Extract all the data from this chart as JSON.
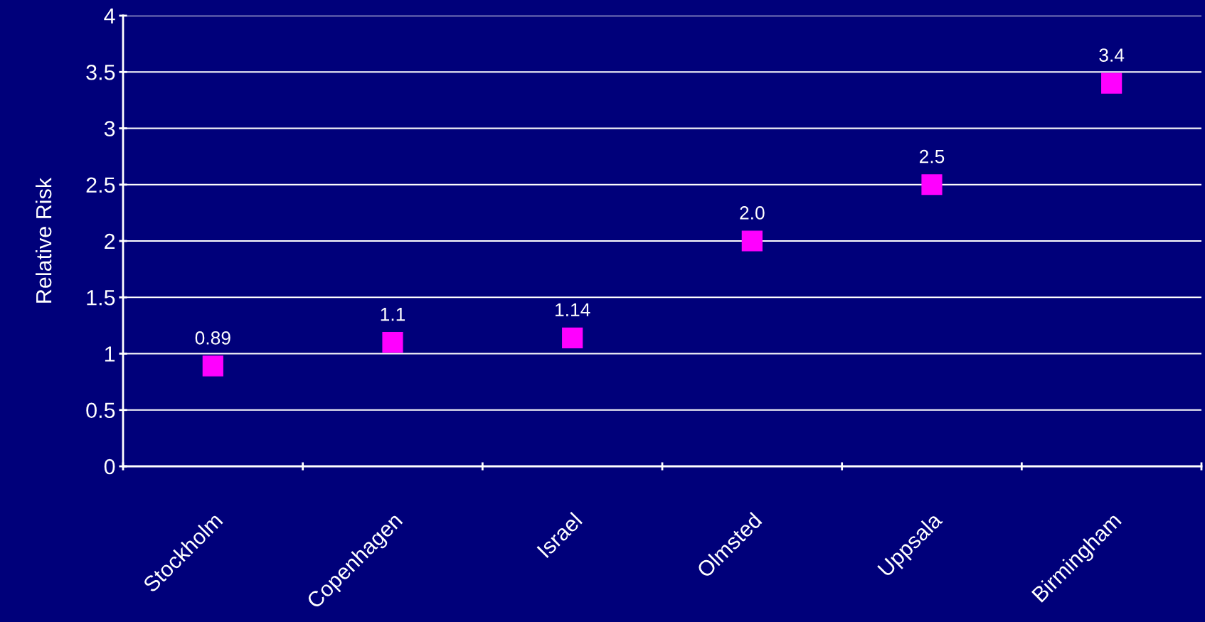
{
  "chart_data": {
    "type": "scatter",
    "ylabel": "Relative Risk",
    "categories": [
      "Stockholm",
      "Copenhagen",
      "Israel",
      "Olmsted",
      "Uppsala",
      "Birmingham"
    ],
    "series": [
      {
        "color": "#ff00ff",
        "values": [
          0.89,
          1.1,
          1.14,
          2.0,
          2.5,
          3.4
        ],
        "value_labels": [
          "0.89",
          "1.1",
          "1.14",
          "2.0",
          "2.5",
          "3.4"
        ]
      }
    ],
    "ylim": [
      0,
      4
    ],
    "yticks": [
      0,
      0.5,
      1,
      1.5,
      2,
      2.5,
      3,
      3.5,
      4
    ],
    "grid": "y",
    "marker": "square",
    "legend": false
  }
}
